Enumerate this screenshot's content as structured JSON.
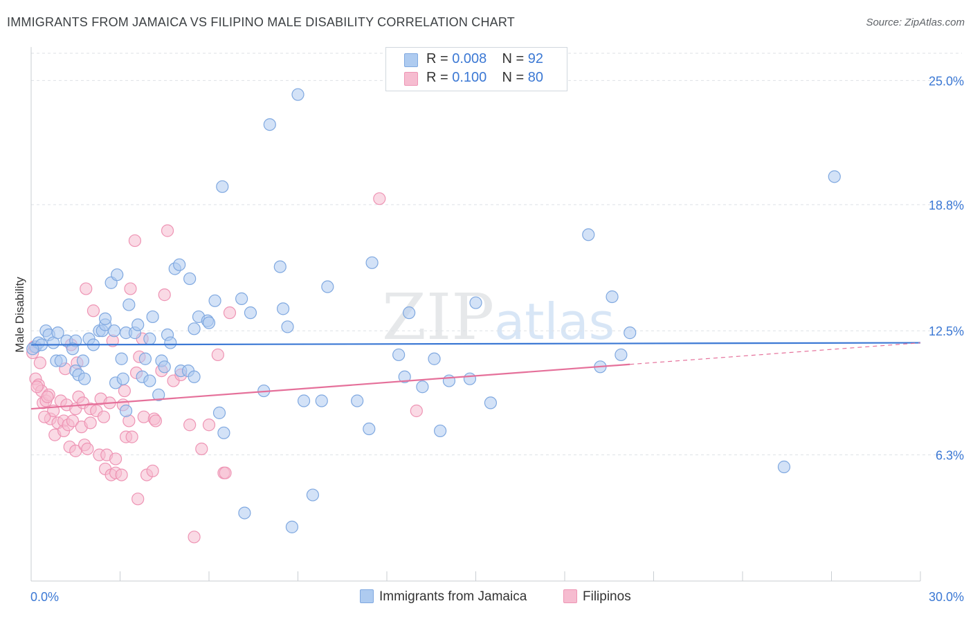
{
  "title": "IMMIGRANTS FROM JAMAICA VS FILIPINO MALE DISABILITY CORRELATION CHART",
  "source": "Source: ZipAtlas.com",
  "watermark": "ZIPatlas",
  "legend": {
    "rows": [
      {
        "r_label": "R = ",
        "r_value": "0.008",
        "n_label": "N = ",
        "n_value": "92"
      },
      {
        "r_label": "R = ",
        "r_value": "0.100",
        "n_label": "N = ",
        "n_value": "80"
      }
    ]
  },
  "bottom_legend": [
    "Immigrants from Jamaica",
    "Filipinos"
  ],
  "colors": {
    "jamaica_fill": "#aecbf0",
    "jamaica_stroke": "#7fa8e0",
    "jamaica_line": "#3b78d4",
    "filipino_fill": "#f6bcd0",
    "filipino_stroke": "#ee94b4",
    "filipino_line": "#e5709a",
    "tick_label": "#3b78d4",
    "grid": "#dde1e6"
  },
  "chart_data": {
    "type": "scatter",
    "xlabel": "",
    "ylabel": "Male Disability",
    "xlim": [
      0,
      30
    ],
    "ylim": [
      0,
      26.5
    ],
    "x_tick_labels": [
      "0.0%",
      "30.0%"
    ],
    "y_ticks": [
      6.3,
      12.5,
      18.8,
      25.0
    ],
    "y_tick_labels": [
      "6.3%",
      "12.5%",
      "18.8%",
      "25.0%"
    ],
    "grid": true,
    "series": [
      {
        "name": "Immigrants from Jamaica",
        "trend": {
          "x": [
            0,
            30
          ],
          "y": [
            11.8,
            11.9
          ],
          "dashed_from": null
        },
        "points": [
          [
            0.15,
            11.7
          ],
          [
            0.25,
            11.9
          ],
          [
            0.35,
            11.8
          ],
          [
            0.5,
            12.5
          ],
          [
            0.6,
            12.3
          ],
          [
            0.75,
            11.9
          ],
          [
            0.85,
            11.0
          ],
          [
            1.0,
            11.0
          ],
          [
            0.9,
            12.4
          ],
          [
            1.2,
            12.0
          ],
          [
            1.5,
            12.0
          ],
          [
            1.4,
            11.6
          ],
          [
            1.5,
            10.5
          ],
          [
            1.6,
            10.3
          ],
          [
            1.75,
            11.0
          ],
          [
            1.8,
            10.1
          ],
          [
            1.95,
            12.1
          ],
          [
            2.1,
            11.8
          ],
          [
            2.3,
            12.5
          ],
          [
            2.4,
            12.5
          ],
          [
            2.5,
            12.8
          ],
          [
            2.5,
            13.1
          ],
          [
            2.7,
            14.9
          ],
          [
            2.8,
            12.5
          ],
          [
            2.9,
            15.3
          ],
          [
            2.85,
            9.9
          ],
          [
            3.05,
            11.1
          ],
          [
            3.1,
            10.1
          ],
          [
            3.2,
            8.5
          ],
          [
            3.2,
            12.4
          ],
          [
            3.3,
            13.8
          ],
          [
            3.5,
            12.4
          ],
          [
            3.6,
            12.8
          ],
          [
            3.75,
            10.2
          ],
          [
            3.85,
            11.1
          ],
          [
            4.0,
            12.1
          ],
          [
            4.0,
            10.0
          ],
          [
            4.1,
            13.2
          ],
          [
            4.3,
            9.3
          ],
          [
            4.4,
            11.0
          ],
          [
            4.5,
            10.7
          ],
          [
            4.6,
            12.3
          ],
          [
            4.7,
            11.9
          ],
          [
            4.85,
            15.6
          ],
          [
            5.0,
            15.8
          ],
          [
            5.05,
            10.5
          ],
          [
            5.3,
            10.5
          ],
          [
            5.35,
            15.1
          ],
          [
            5.5,
            10.2
          ],
          [
            5.5,
            12.6
          ],
          [
            5.65,
            13.2
          ],
          [
            5.95,
            13.0
          ],
          [
            6.0,
            12.9
          ],
          [
            6.2,
            14.0
          ],
          [
            6.35,
            8.4
          ],
          [
            6.45,
            19.7
          ],
          [
            6.5,
            7.4
          ],
          [
            7.1,
            14.1
          ],
          [
            7.2,
            3.4
          ],
          [
            7.4,
            13.4
          ],
          [
            7.85,
            9.5
          ],
          [
            8.05,
            22.8
          ],
          [
            8.4,
            15.7
          ],
          [
            8.5,
            13.6
          ],
          [
            8.65,
            12.7
          ],
          [
            8.8,
            2.7
          ],
          [
            9.0,
            24.3
          ],
          [
            9.2,
            9.0
          ],
          [
            9.5,
            4.3
          ],
          [
            9.8,
            9.0
          ],
          [
            10.0,
            14.7
          ],
          [
            11.0,
            9.0
          ],
          [
            11.4,
            7.6
          ],
          [
            11.5,
            15.9
          ],
          [
            12.4,
            11.3
          ],
          [
            12.6,
            10.2
          ],
          [
            12.75,
            13.4
          ],
          [
            13.2,
            9.7
          ],
          [
            13.6,
            11.1
          ],
          [
            13.8,
            7.5
          ],
          [
            14.1,
            10.0
          ],
          [
            14.8,
            10.1
          ],
          [
            15.0,
            13.9
          ],
          [
            15.5,
            8.9
          ],
          [
            18.8,
            17.3
          ],
          [
            19.2,
            10.7
          ],
          [
            19.6,
            14.2
          ],
          [
            19.9,
            11.3
          ],
          [
            20.2,
            12.4
          ],
          [
            25.4,
            5.7
          ],
          [
            27.1,
            20.2
          ],
          [
            0.05,
            11.6
          ]
        ]
      },
      {
        "name": "Filipinos",
        "trend": {
          "x": [
            0,
            30
          ],
          "y": [
            8.6,
            11.9
          ],
          "dashed_from": 20.2
        },
        "points": [
          [
            0.1,
            11.7
          ],
          [
            0.15,
            10.1
          ],
          [
            0.25,
            9.8
          ],
          [
            0.35,
            9.5
          ],
          [
            0.4,
            8.9
          ],
          [
            0.5,
            9.0
          ],
          [
            0.6,
            9.3
          ],
          [
            0.65,
            8.1
          ],
          [
            0.75,
            8.5
          ],
          [
            0.8,
            7.3
          ],
          [
            0.9,
            7.9
          ],
          [
            1.0,
            9.0
          ],
          [
            1.1,
            8.0
          ],
          [
            1.1,
            7.5
          ],
          [
            1.2,
            8.8
          ],
          [
            1.25,
            7.8
          ],
          [
            1.3,
            6.7
          ],
          [
            1.4,
            8.0
          ],
          [
            1.5,
            8.6
          ],
          [
            1.5,
            6.5
          ],
          [
            1.55,
            10.9
          ],
          [
            1.6,
            9.2
          ],
          [
            1.7,
            7.7
          ],
          [
            1.75,
            8.9
          ],
          [
            1.8,
            6.8
          ],
          [
            1.85,
            14.6
          ],
          [
            1.9,
            6.6
          ],
          [
            2.0,
            8.6
          ],
          [
            2.0,
            7.9
          ],
          [
            2.1,
            13.5
          ],
          [
            2.2,
            8.5
          ],
          [
            2.3,
            6.3
          ],
          [
            2.35,
            9.1
          ],
          [
            2.45,
            8.2
          ],
          [
            2.5,
            5.6
          ],
          [
            2.55,
            6.3
          ],
          [
            2.7,
            5.3
          ],
          [
            2.75,
            12.0
          ],
          [
            2.85,
            5.4
          ],
          [
            2.85,
            6.1
          ],
          [
            3.05,
            5.3
          ],
          [
            3.1,
            8.8
          ],
          [
            3.15,
            9.5
          ],
          [
            3.2,
            7.2
          ],
          [
            3.3,
            8.0
          ],
          [
            3.35,
            14.6
          ],
          [
            3.4,
            7.2
          ],
          [
            3.5,
            17.0
          ],
          [
            3.55,
            10.4
          ],
          [
            3.6,
            4.1
          ],
          [
            3.75,
            12.1
          ],
          [
            3.8,
            8.2
          ],
          [
            3.9,
            5.3
          ],
          [
            4.1,
            5.5
          ],
          [
            4.15,
            8.1
          ],
          [
            4.2,
            8.0
          ],
          [
            4.4,
            10.5
          ],
          [
            4.5,
            14.3
          ],
          [
            4.6,
            17.5
          ],
          [
            4.8,
            10.0
          ],
          [
            5.05,
            10.3
          ],
          [
            5.35,
            7.8
          ],
          [
            5.5,
            2.2
          ],
          [
            5.75,
            6.6
          ],
          [
            6.0,
            7.8
          ],
          [
            6.3,
            11.3
          ],
          [
            6.5,
            5.4
          ],
          [
            6.55,
            5.4
          ],
          [
            6.7,
            13.4
          ],
          [
            11.75,
            19.1
          ],
          [
            13.0,
            8.5
          ],
          [
            0.3,
            10.9
          ],
          [
            0.45,
            8.2
          ],
          [
            0.55,
            9.2
          ],
          [
            1.35,
            11.8
          ],
          [
            2.65,
            8.9
          ],
          [
            3.65,
            11.2
          ],
          [
            0.2,
            9.7
          ],
          [
            1.15,
            10.6
          ],
          [
            0.05,
            11.4
          ]
        ]
      }
    ]
  }
}
